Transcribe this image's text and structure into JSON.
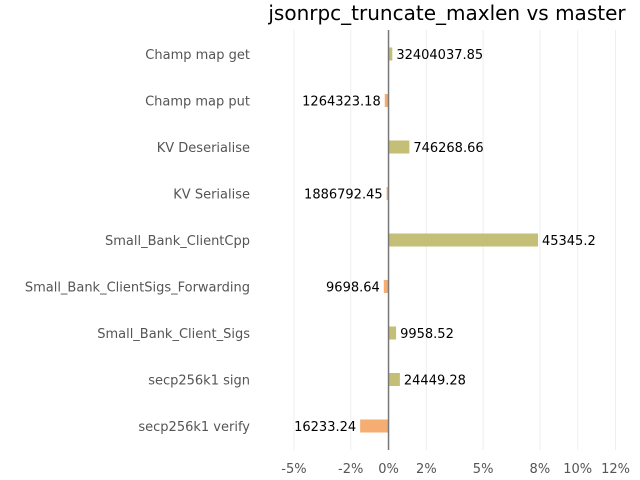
{
  "chart_data": {
    "type": "bar",
    "orientation": "horizontal",
    "title": "jsonrpc_truncate_maxlen vs master",
    "xlabel": "",
    "ylabel": "",
    "xlim": [
      -6.9,
      12.5
    ],
    "x_ticks": [
      -5,
      -2,
      0,
      2,
      5,
      8,
      10,
      12
    ],
    "x_tick_labels": [
      "-5%",
      "-2%",
      "0%",
      "2%",
      "5%",
      "8%",
      "10%",
      "12%"
    ],
    "grid": "vertical",
    "categories": [
      "Champ map get",
      "Champ map put",
      "KV Deserialise",
      "KV Serialise",
      "Small_Bank_ClientCpp",
      "Small_Bank_ClientSigs_Forwarding",
      "Small_Bank_Client_Sigs",
      "secp256k1 sign",
      "secp256k1 verify"
    ],
    "values": [
      0.2,
      -0.2,
      1.1,
      -0.1,
      7.9,
      -0.25,
      0.4,
      0.6,
      -1.5
    ],
    "value_labels": [
      "32404037.85",
      "1264323.18",
      "746268.66",
      "1886792.45",
      "45345.2",
      "9698.64",
      "9958.52",
      "24449.28",
      "16233.24"
    ],
    "colors": {
      "positive": "#c3bf77",
      "negative": "#f5ad72",
      "zero_line": "#777777",
      "grid": "#eeeeee"
    }
  }
}
